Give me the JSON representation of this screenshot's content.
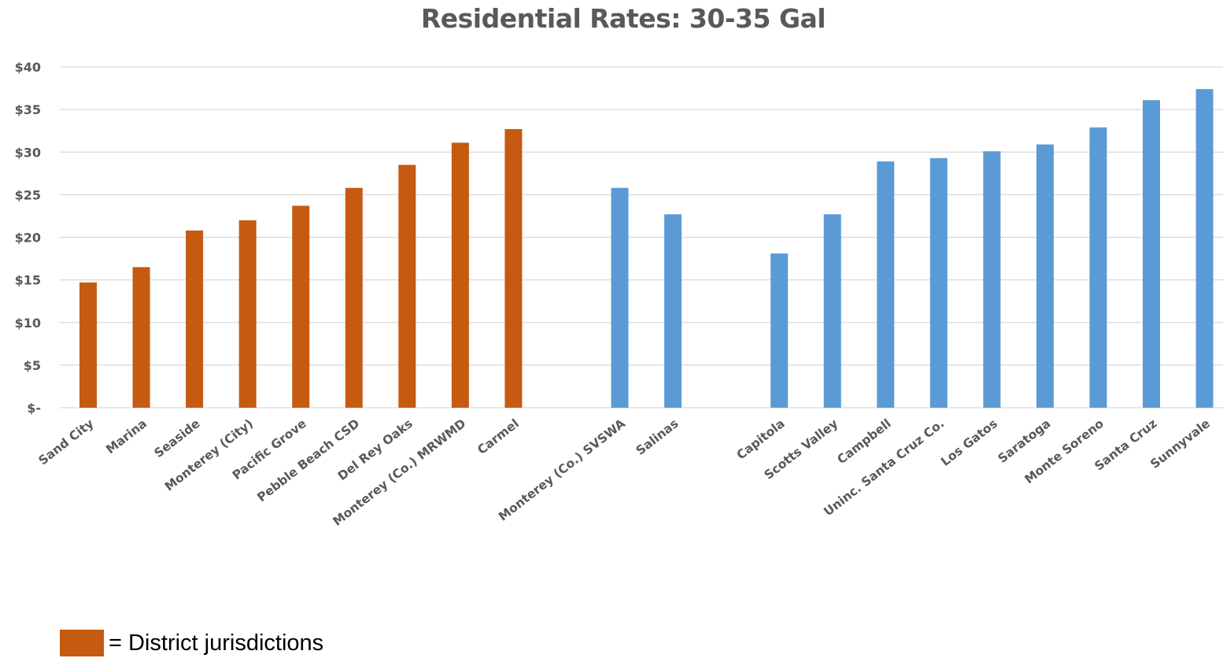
{
  "chart_data": {
    "type": "bar",
    "title": "Residential Rates: 30-35 Gal",
    "xlabel": "",
    "ylabel": "",
    "ylim": [
      0,
      40
    ],
    "y_tick_values": [
      0,
      5,
      10,
      15,
      20,
      25,
      30,
      35,
      40
    ],
    "y_tick_labels": [
      "$-",
      "$5",
      "$10",
      "$15",
      "$20",
      "$25",
      "$30",
      "$35",
      "$40"
    ],
    "grid": true,
    "categories": [
      "Sand City",
      "Marina",
      "Seaside",
      "Monterey (City)",
      "Pacific Grove",
      "Pebble Beach CSD",
      "Del Rey Oaks",
      "Monterey (Co.) MRWMD",
      "Carmel",
      "",
      "Monterey (Co.) SVSWA",
      "Salinas",
      "",
      "Capitola",
      "Scotts Valley",
      "Campbell",
      "Uninc. Santa Cruz Co.",
      "Los Gatos",
      "Saratoga",
      "Monte Soreno",
      "Santa Cruz",
      "Sunnyvale"
    ],
    "values": [
      14.7,
      16.5,
      20.8,
      22.0,
      23.7,
      25.8,
      28.5,
      31.1,
      32.7,
      null,
      25.8,
      22.7,
      null,
      18.1,
      22.7,
      28.9,
      29.3,
      30.1,
      30.9,
      32.9,
      36.1,
      37.4
    ],
    "bar_groups": [
      "district",
      "district",
      "district",
      "district",
      "district",
      "district",
      "district",
      "district",
      "district",
      "",
      "other",
      "other",
      "",
      "other",
      "other",
      "other",
      "other",
      "other",
      "other",
      "other",
      "other",
      "other"
    ],
    "colors": {
      "district": "#C55A11",
      "other": "#5B9BD5",
      "grid": "#D9D9D9",
      "text": "#595959"
    },
    "legend": {
      "placement": "bottom-left",
      "label": "= District jurisdictions",
      "color": "#C55A11"
    }
  }
}
